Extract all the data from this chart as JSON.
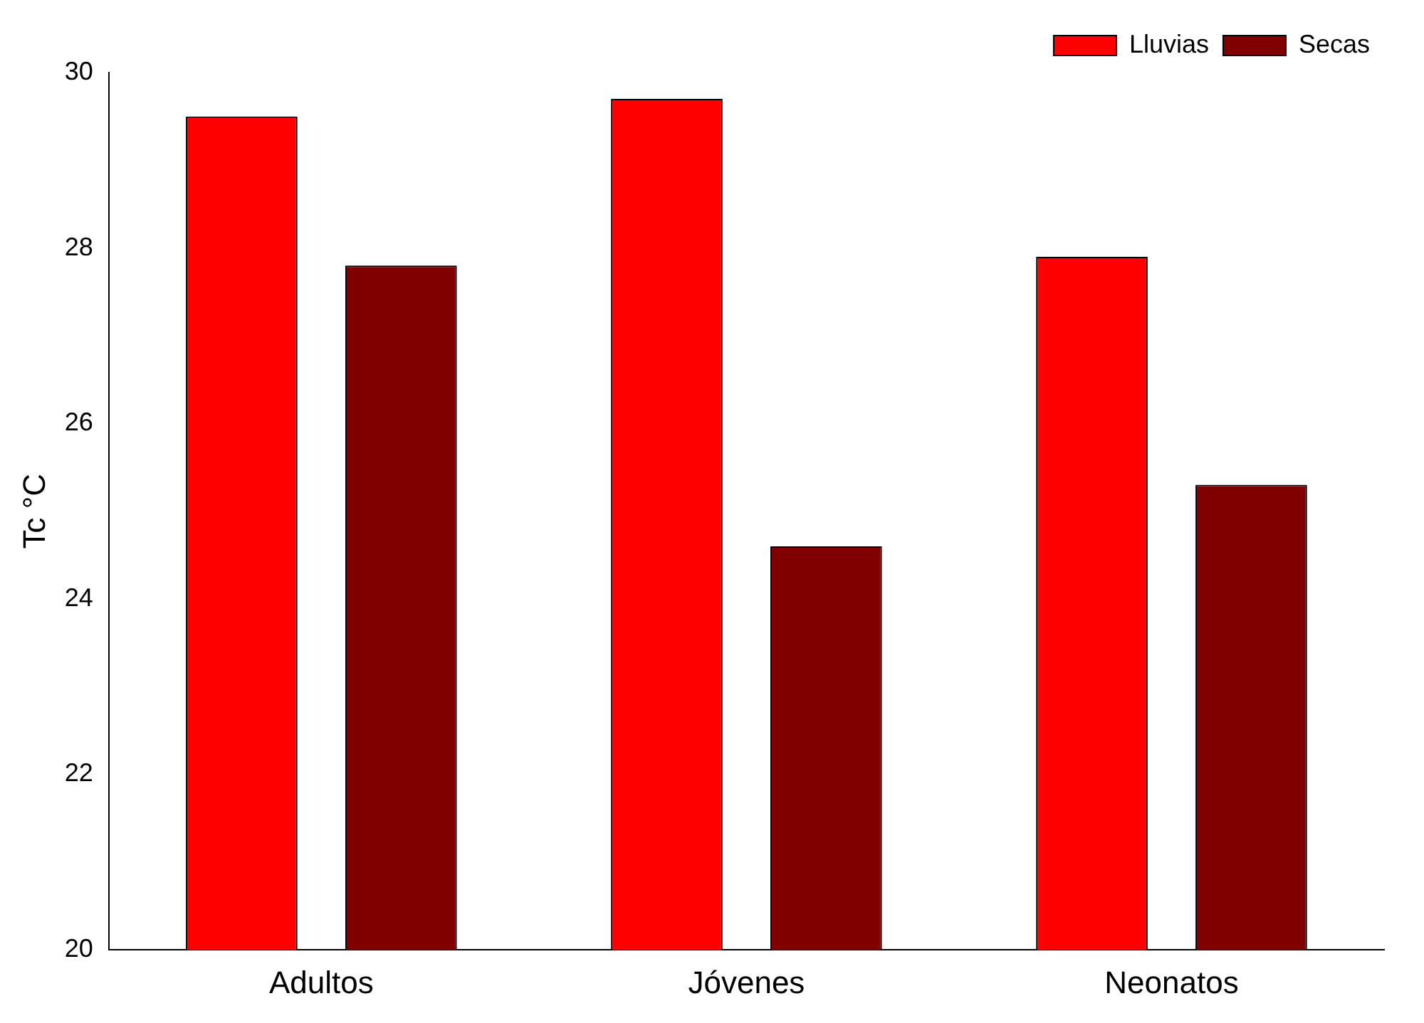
{
  "chart_data": {
    "type": "bar",
    "ylabel": "Tc °C",
    "categories": [
      "Adultos",
      "Jóvenes",
      "Neonatos"
    ],
    "series": [
      {
        "name": "Lluvias",
        "color": "#ff0000",
        "values": [
          29.5,
          29.7,
          27.9
        ]
      },
      {
        "name": "Secas",
        "color": "#800000",
        "values": [
          27.8,
          24.6,
          25.3
        ]
      }
    ],
    "ylim": [
      20,
      30
    ],
    "yticks": [
      20,
      22,
      24,
      26,
      28,
      30
    ],
    "grid": false,
    "legend": "top right"
  }
}
